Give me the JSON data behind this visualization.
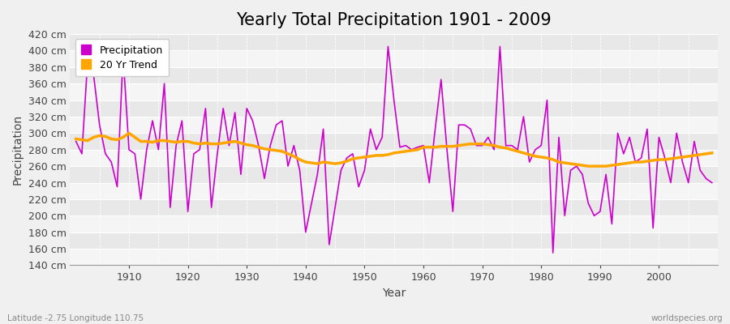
{
  "title": "Yearly Total Precipitation 1901 - 2009",
  "xlabel": "Year",
  "ylabel": "Precipitation",
  "footnote_left": "Latitude -2.75 Longitude 110.75",
  "footnote_right": "worldspecies.org",
  "ylim": [
    140,
    420
  ],
  "ytick_step": 20,
  "years": [
    1901,
    1902,
    1903,
    1904,
    1905,
    1906,
    1907,
    1908,
    1909,
    1910,
    1911,
    1912,
    1913,
    1914,
    1915,
    1916,
    1917,
    1918,
    1919,
    1920,
    1921,
    1922,
    1923,
    1924,
    1925,
    1926,
    1927,
    1928,
    1929,
    1930,
    1931,
    1932,
    1933,
    1934,
    1935,
    1936,
    1937,
    1938,
    1939,
    1940,
    1941,
    1942,
    1943,
    1944,
    1945,
    1946,
    1947,
    1948,
    1949,
    1950,
    1951,
    1952,
    1953,
    1954,
    1955,
    1956,
    1957,
    1958,
    1959,
    1960,
    1961,
    1962,
    1963,
    1964,
    1965,
    1966,
    1967,
    1968,
    1969,
    1970,
    1971,
    1972,
    1973,
    1974,
    1975,
    1976,
    1977,
    1978,
    1979,
    1980,
    1981,
    1982,
    1983,
    1984,
    1985,
    1986,
    1987,
    1988,
    1989,
    1990,
    1991,
    1992,
    1993,
    1994,
    1995,
    1996,
    1997,
    1998,
    1999,
    2000,
    2001,
    2002,
    2003,
    2004,
    2005,
    2006,
    2007,
    2008,
    2009
  ],
  "precip": [
    290,
    275,
    390,
    370,
    310,
    275,
    265,
    235,
    395,
    280,
    275,
    220,
    280,
    315,
    280,
    360,
    210,
    285,
    315,
    205,
    275,
    280,
    330,
    210,
    275,
    330,
    285,
    325,
    250,
    330,
    315,
    285,
    245,
    285,
    310,
    315,
    260,
    285,
    255,
    180,
    215,
    250,
    305,
    165,
    210,
    255,
    270,
    275,
    235,
    255,
    305,
    280,
    295,
    405,
    340,
    283,
    285,
    280,
    283,
    285,
    240,
    305,
    365,
    280,
    205,
    310,
    310,
    305,
    285,
    285,
    295,
    280,
    405,
    285,
    285,
    280,
    320,
    265,
    280,
    285,
    340,
    155,
    295,
    200,
    255,
    260,
    250,
    215,
    200,
    205,
    250,
    190,
    300,
    275,
    295,
    265,
    270,
    305,
    185,
    295,
    270,
    240,
    300,
    265,
    240,
    290,
    255,
    245,
    240
  ],
  "trend": [
    293,
    292,
    291,
    295,
    297,
    296,
    293,
    292,
    295,
    300,
    295,
    290,
    290,
    289,
    291,
    291,
    290,
    289,
    290,
    290,
    288,
    287,
    288,
    287,
    287,
    288,
    289,
    290,
    288,
    286,
    285,
    283,
    281,
    280,
    279,
    278,
    275,
    272,
    268,
    265,
    264,
    263,
    265,
    264,
    263,
    264,
    266,
    269,
    270,
    271,
    272,
    273,
    273,
    274,
    276,
    277,
    278,
    279,
    280,
    283,
    283,
    283,
    284,
    284,
    284,
    285,
    286,
    287,
    287,
    287,
    286,
    285,
    283,
    282,
    280,
    278,
    276,
    274,
    272,
    271,
    270,
    268,
    265,
    264,
    263,
    262,
    261,
    260,
    260,
    260,
    260,
    261,
    262,
    263,
    264,
    265,
    265,
    266,
    267,
    268,
    268,
    269,
    270,
    271,
    272,
    273,
    274,
    275,
    276
  ],
  "precip_color": "#cc00cc",
  "trend_color": "#FFA500",
  "fig_bg_color": "#f0f0f0",
  "plot_bg_color": "#f0f0f0",
  "band_color_light": "#f5f5f5",
  "band_color_dark": "#e8e8e8",
  "grid_color": "#ffffff",
  "title_fontsize": 15,
  "label_fontsize": 10,
  "tick_fontsize": 9
}
